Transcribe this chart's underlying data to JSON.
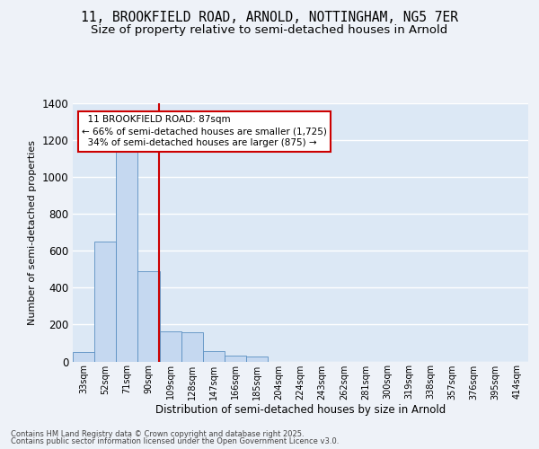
{
  "title_line1": "11, BROOKFIELD ROAD, ARNOLD, NOTTINGHAM, NG5 7ER",
  "title_line2": "Size of property relative to semi-detached houses in Arnold",
  "xlabel": "Distribution of semi-detached houses by size in Arnold",
  "ylabel": "Number of semi-detached properties",
  "footer_line1": "Contains HM Land Registry data © Crown copyright and database right 2025.",
  "footer_line2": "Contains public sector information licensed under the Open Government Licence v3.0.",
  "categories": [
    "33sqm",
    "52sqm",
    "71sqm",
    "90sqm",
    "109sqm",
    "128sqm",
    "147sqm",
    "166sqm",
    "185sqm",
    "204sqm",
    "224sqm",
    "243sqm",
    "262sqm",
    "281sqm",
    "300sqm",
    "319sqm",
    "338sqm",
    "357sqm",
    "376sqm",
    "395sqm",
    "414sqm"
  ],
  "values": [
    50,
    650,
    1175,
    490,
    165,
    160,
    55,
    30,
    25,
    0,
    0,
    0,
    0,
    0,
    0,
    0,
    0,
    0,
    0,
    0,
    0
  ],
  "bar_color": "#c5d8f0",
  "bar_edge_color": "#5a8fc2",
  "vline_color": "#cc0000",
  "property_label": "11 BROOKFIELD ROAD: 87sqm",
  "pct_smaller": 66,
  "pct_larger": 34,
  "count_smaller": 1725,
  "count_larger": 875,
  "annotation_box_color": "#cc0000",
  "ylim": [
    0,
    1400
  ],
  "yticks": [
    0,
    200,
    400,
    600,
    800,
    1000,
    1200,
    1400
  ],
  "bg_color": "#dce8f5",
  "grid_color": "#ffffff",
  "fig_bg_color": "#eef2f8",
  "title1_fontsize": 10.5,
  "title2_fontsize": 9.5
}
